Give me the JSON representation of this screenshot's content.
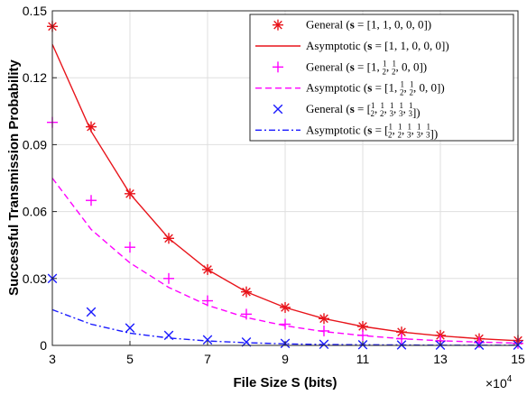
{
  "chart_data": {
    "type": "line",
    "xlabel": "File Size S (bits)",
    "ylabel": "Successful Transmission Probability",
    "x_multiplier_label": "×10",
    "x_multiplier_exp": "4",
    "xlim": [
      3,
      15
    ],
    "ylim": [
      0,
      0.15
    ],
    "xticks": [
      "3",
      "5",
      "7",
      "9",
      "11",
      "13",
      "15"
    ],
    "yticks": [
      "0",
      "0.03",
      "0.06",
      "0.09",
      "0.12",
      "0.15"
    ],
    "grid": true,
    "legend_position": "top-right",
    "series": [
      {
        "name": "General (s = [1, 1, 0, 0, 0])",
        "style": "marker",
        "marker": "asterisk",
        "color": "#e8141b",
        "x": [
          3,
          4,
          5,
          6,
          7,
          8,
          9,
          10,
          11,
          12,
          13,
          14,
          15
        ],
        "y": [
          0.143,
          0.098,
          0.068,
          0.048,
          0.034,
          0.024,
          0.017,
          0.012,
          0.0085,
          0.006,
          0.0045,
          0.003,
          0.0022
        ]
      },
      {
        "name": "Asymptotic (s = [1, 1, 0, 0, 0])",
        "style": "line",
        "dash": "solid",
        "color": "#e8141b",
        "x": [
          3,
          4,
          5,
          6,
          7,
          8,
          9,
          10,
          11,
          12,
          13,
          14,
          15
        ],
        "y": [
          0.135,
          0.096,
          0.068,
          0.048,
          0.034,
          0.024,
          0.017,
          0.012,
          0.0085,
          0.006,
          0.0043,
          0.003,
          0.0021
        ]
      },
      {
        "name": "General (s = [1, 1/2, 1/2, 0, 0])",
        "style": "marker",
        "marker": "plus",
        "color": "#ff00ff",
        "x": [
          3,
          4,
          5,
          6,
          7,
          8,
          9,
          10,
          11,
          12,
          13,
          14,
          15
        ],
        "y": [
          0.1,
          0.065,
          0.044,
          0.03,
          0.02,
          0.014,
          0.0095,
          0.0065,
          0.0045,
          0.003,
          0.002,
          0.0013,
          0.0009
        ]
      },
      {
        "name": "Asymptotic (s = [1, 1/2, 1/2, 0, 0])",
        "style": "line",
        "dash": "dashed",
        "color": "#ff00ff",
        "x": [
          3,
          4,
          5,
          6,
          7,
          8,
          9,
          10,
          11,
          12,
          13,
          14,
          15
        ],
        "y": [
          0.075,
          0.052,
          0.037,
          0.026,
          0.018,
          0.0125,
          0.0088,
          0.0062,
          0.0044,
          0.003,
          0.0021,
          0.0015,
          0.001
        ]
      },
      {
        "name": "General (s = [1/2, 1/2, 1/3, 1/3, 1/3])",
        "style": "marker",
        "marker": "x",
        "color": "#1a1aff",
        "x": [
          3,
          4,
          5,
          6,
          7,
          8,
          9,
          10,
          11,
          12,
          13,
          14,
          15
        ],
        "y": [
          0.03,
          0.015,
          0.0078,
          0.0045,
          0.0025,
          0.0015,
          0.0009,
          0.0005,
          0.0003,
          0.0002,
          0.0001,
          0.0001,
          0.0001
        ]
      },
      {
        "name": "Asymptotic (s = [1/2, 1/2, 1/3, 1/3, 1/3])",
        "style": "line",
        "dash": "dashdot",
        "color": "#1a1aff",
        "x": [
          3,
          4,
          5,
          6,
          7,
          8,
          9,
          10,
          11,
          12,
          13,
          14,
          15
        ],
        "y": [
          0.016,
          0.0095,
          0.0055,
          0.0033,
          0.002,
          0.0012,
          0.0007,
          0.0004,
          0.0003,
          0.0002,
          0.0001,
          0.0001,
          0.0001
        ]
      }
    ],
    "legend": [
      {
        "prefix": "General (",
        "vec": [
          "1",
          "1",
          "0",
          "0",
          "0"
        ]
      },
      {
        "prefix": "Asymptotic (",
        "vec": [
          "1",
          "1",
          "0",
          "0",
          "0"
        ]
      },
      {
        "prefix": "General (",
        "vec": [
          "1",
          "1/2",
          "1/2",
          "0",
          "0"
        ]
      },
      {
        "prefix": "Asymptotic (",
        "vec": [
          "1",
          "1/2",
          "1/2",
          "0",
          "0"
        ]
      },
      {
        "prefix": "General (",
        "vec": [
          "1/2",
          "1/2",
          "1/3",
          "1/3",
          "1/3"
        ]
      },
      {
        "prefix": "Asymptotic (",
        "vec": [
          "1/2",
          "1/2",
          "1/3",
          "1/3",
          "1/3"
        ]
      }
    ]
  }
}
